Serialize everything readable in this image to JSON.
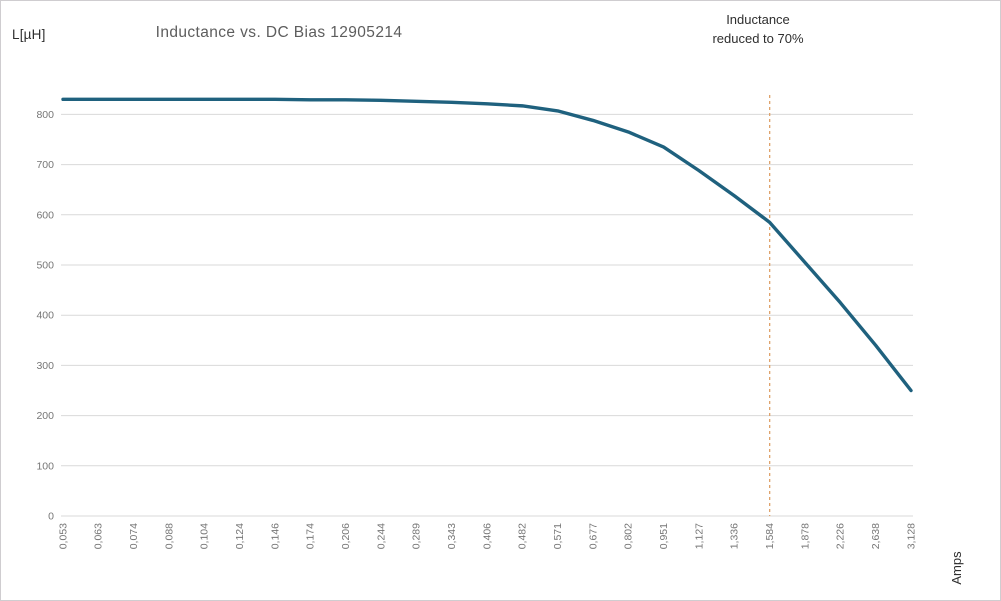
{
  "chart_data": {
    "type": "line",
    "title": "Inductance vs. DC Bias 12905214",
    "ylabel": "L[µH]",
    "xlabel": "Amps",
    "categories": [
      "0,053",
      "0,063",
      "0,074",
      "0,088",
      "0,104",
      "0,124",
      "0,146",
      "0,174",
      "0,206",
      "0,244",
      "0,289",
      "0,343",
      "0,406",
      "0,482",
      "0,571",
      "0,677",
      "0,802",
      "0,951",
      "1,127",
      "1,336",
      "1,584",
      "1,878",
      "2,226",
      "2,638",
      "3,128"
    ],
    "series": [
      {
        "name": "Inductance",
        "color": "#1f617e",
        "values": [
          830,
          830,
          830,
          830,
          830,
          830,
          830,
          829,
          829,
          828,
          826,
          824,
          821,
          817,
          807,
          788,
          765,
          735,
          688,
          638,
          585,
          505,
          425,
          340,
          250
        ]
      }
    ],
    "ylim": [
      0,
      800
    ],
    "y_tick_labels": [
      "0",
      "100",
      "200",
      "300",
      "400",
      "500",
      "600",
      "700",
      "800"
    ],
    "grid": true,
    "legend_position": "none",
    "annotation": {
      "line1": "Inductance",
      "line2": "reduced to 70%",
      "x_category": "1,584",
      "x_category_index": 20,
      "line_style": "dashed",
      "line_color": "#dfa26a"
    },
    "colors": {
      "gridline": "#d9d9d9",
      "tick_text": "#767676",
      "title_text": "#5d5d5d",
      "dark_text": "#2e2e2e",
      "background": "#ffffff",
      "border": "#cfcdd0"
    }
  }
}
